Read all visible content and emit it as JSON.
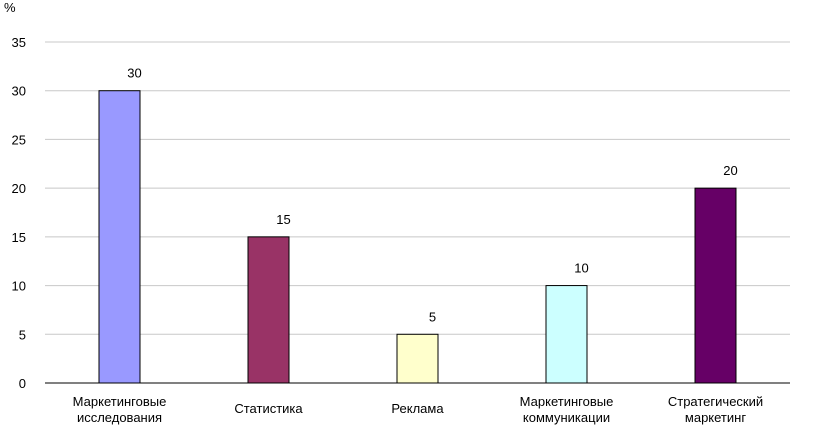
{
  "chart_data": {
    "type": "bar",
    "ylabel": "%",
    "ylim": [
      0,
      35
    ],
    "yticks": [
      0,
      5,
      10,
      15,
      20,
      25,
      30,
      35
    ],
    "grid": true,
    "categories": [
      [
        "Маркетинговые",
        "исследования"
      ],
      [
        "Статистика"
      ],
      [
        "Реклама"
      ],
      [
        "Маркетинговые",
        "коммуникации"
      ],
      [
        "Стратегический",
        "маркетинг"
      ]
    ],
    "values": [
      30,
      15,
      5,
      10,
      20
    ],
    "colors": [
      "#9999ff",
      "#993366",
      "#ffffcc",
      "#ccffff",
      "#660066"
    ]
  }
}
